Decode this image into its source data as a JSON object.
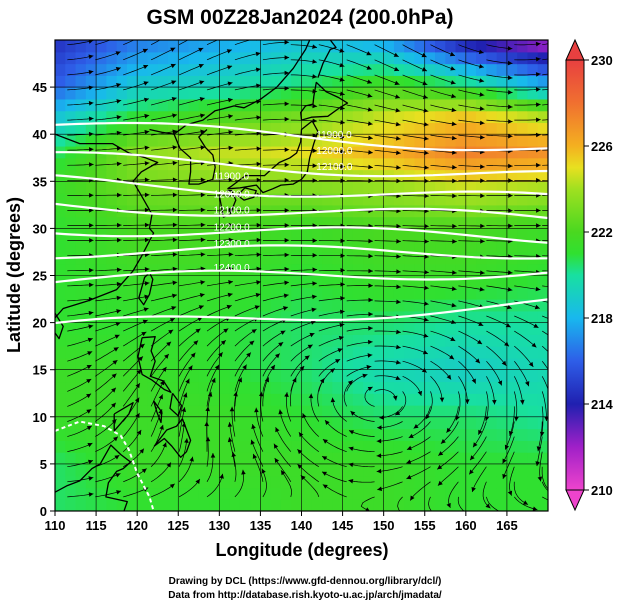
{
  "title": "GSM 00Z28Jan2024 (200.0hPa)",
  "footer": {
    "line1": "Drawing by DCL (https://www.gfd-dennou.org/library/dcl/)",
    "line2": "Data from http://database.rish.kyoto-u.ac.jp/arch/jmadata/"
  },
  "chart_data": {
    "type": "heatmap",
    "title": "GSM 00Z28Jan2024 (200.0hPa)",
    "xlabel": "Longitude (degrees)",
    "ylabel": "Latitude  (degrees)",
    "xlim": [
      110,
      170
    ],
    "ylim": [
      0,
      50
    ],
    "x_ticks": [
      "110",
      "115",
      "120",
      "125",
      "130",
      "135",
      "140",
      "145",
      "150",
      "155",
      "160",
      "165"
    ],
    "y_ticks": [
      "0",
      "5",
      "10",
      "15",
      "20",
      "25",
      "30",
      "35",
      "40",
      "45"
    ],
    "colorbar": {
      "ticks": [
        "210",
        "214",
        "218",
        "222",
        "226",
        "230"
      ],
      "range": [
        210,
        230
      ]
    },
    "colormap": [
      {
        "value": 210,
        "color": "#ee44cc"
      },
      {
        "value": 212,
        "color": "#a020c8"
      },
      {
        "value": 214,
        "color": "#2020b0"
      },
      {
        "value": 216,
        "color": "#2e5ee8"
      },
      {
        "value": 218,
        "color": "#18b8ee"
      },
      {
        "value": 220,
        "color": "#18e0a0"
      },
      {
        "value": 221,
        "color": "#30e030"
      },
      {
        "value": 222,
        "color": "#4ad820"
      },
      {
        "value": 224,
        "color": "#a0e020"
      },
      {
        "value": 225,
        "color": "#e8e020"
      },
      {
        "value": 226,
        "color": "#f4b020"
      },
      {
        "value": 228,
        "color": "#f07030"
      },
      {
        "value": 230,
        "color": "#e84040"
      }
    ],
    "temperature_field": {
      "description": "approximate 200 hPa temperature (K) by latitude row at longitudes 110..170",
      "lons": [
        110,
        120,
        130,
        140,
        150,
        160,
        170
      ],
      "rows": [
        {
          "lat": 50,
          "values": [
            214.5,
            216.5,
            217.5,
            218.5,
            217.5,
            213.5,
            211.5
          ]
        },
        {
          "lat": 45,
          "values": [
            216.0,
            219.0,
            219.5,
            220.5,
            222.0,
            221.0,
            218.0
          ]
        },
        {
          "lat": 42,
          "values": [
            218.5,
            221.0,
            222.0,
            223.0,
            224.5,
            225.5,
            224.0
          ]
        },
        {
          "lat": 38,
          "values": [
            220.5,
            223.5,
            224.5,
            225.0,
            226.0,
            227.5,
            227.0
          ]
        },
        {
          "lat": 35,
          "values": [
            221.5,
            223.0,
            223.5,
            223.5,
            224.0,
            225.0,
            224.5
          ]
        },
        {
          "lat": 30,
          "values": [
            221.0,
            222.0,
            222.0,
            221.5,
            222.0,
            222.0,
            221.5
          ]
        },
        {
          "lat": 25,
          "values": [
            221.0,
            221.5,
            221.5,
            221.0,
            221.5,
            221.5,
            221.0
          ]
        },
        {
          "lat": 20,
          "values": [
            221.0,
            221.0,
            221.0,
            220.5,
            220.5,
            220.0,
            220.0
          ]
        },
        {
          "lat": 15,
          "values": [
            221.5,
            221.5,
            221.0,
            220.5,
            219.5,
            219.0,
            219.5
          ]
        },
        {
          "lat": 10,
          "values": [
            221.5,
            221.5,
            221.5,
            221.0,
            220.5,
            220.5,
            220.0
          ]
        },
        {
          "lat": 5,
          "values": [
            220.5,
            221.5,
            221.5,
            221.5,
            221.5,
            221.0,
            221.0
          ]
        },
        {
          "lat": 0,
          "values": [
            220.5,
            221.0,
            221.0,
            221.5,
            221.5,
            221.0,
            221.0
          ]
        }
      ]
    },
    "contour_lines": {
      "color": "#ffffff",
      "description": "white wind-speed / height contours in the jet region",
      "latitudes_at_lon": [
        {
          "lat_west": 41.0,
          "lat_east": 38.5
        },
        {
          "lat_west": 37.5,
          "lat_east": 35.5
        },
        {
          "lat_west": 35.0,
          "lat_east": 33.0
        },
        {
          "lat_west": 32.5,
          "lat_east": 31.0
        },
        {
          "lat_west": 30.0,
          "lat_east": 29.0
        },
        {
          "lat_west": 27.5,
          "lat_east": 27.5
        },
        {
          "lat_west": 24.5,
          "lat_east": 25.5
        },
        {
          "lat_west": 19.5,
          "lat_east": 22.0
        }
      ]
    },
    "contour_labels": [
      "11900.0",
      "12000.0",
      "12100.0",
      "12200.0",
      "12300.0",
      "12400.0"
    ],
    "streamlines": {
      "color": "#000000",
      "jet_axis_lat": 33,
      "anticyclone_center": {
        "lon": 150,
        "lat": 13
      }
    }
  }
}
